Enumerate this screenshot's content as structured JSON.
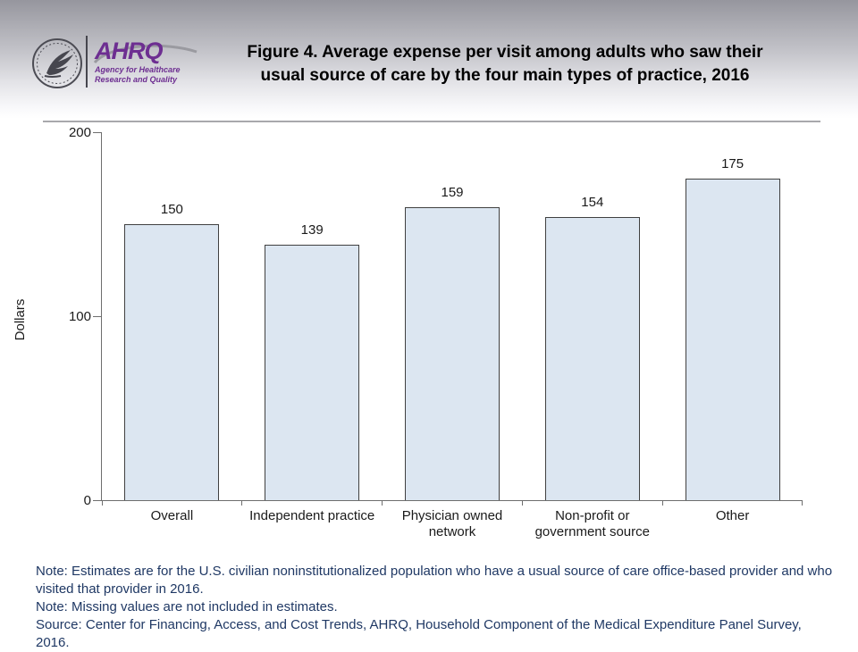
{
  "header": {
    "title_line1": "Figure 4. Average expense per visit among adults who saw their",
    "title_line2": "usual source of care by the four main types of practice, 2016"
  },
  "logos": {
    "ahrq_acronym": "AHRQ",
    "ahrq_tagline1": "Agency for Healthcare",
    "ahrq_tagline2": "Research and Quality",
    "ahrq_purple": "#6d2e91"
  },
  "chart_data": {
    "type": "bar",
    "title": "Figure 4. Average expense per visit among adults who saw their usual source of care by the four main types of practice, 2016",
    "categories": [
      "Overall",
      "Independent practice",
      "Physician owned\nnetwork",
      "Non-profit or\ngovernment source",
      "Other"
    ],
    "values": [
      150,
      139,
      159,
      154,
      175
    ],
    "ylabel": "Dollars",
    "xlabel": "",
    "ylim": [
      0,
      200
    ],
    "yticks": [
      0,
      100,
      200
    ],
    "grid": false,
    "legend": false,
    "bar_fill": "#dce6f1",
    "bar_border": "#404040",
    "axis_color": "#6e6e6e"
  },
  "notes": [
    "Note: Estimates are for the U.S. civilian noninstitutionalized population who have a usual source of care office-based provider and who visited that provider in 2016.",
    "Note: Missing values are not included in estimates.",
    "Source: Center for Financing, Access, and Cost Trends, AHRQ, Household Component of the Medical Expenditure Panel Survey, 2016."
  ]
}
